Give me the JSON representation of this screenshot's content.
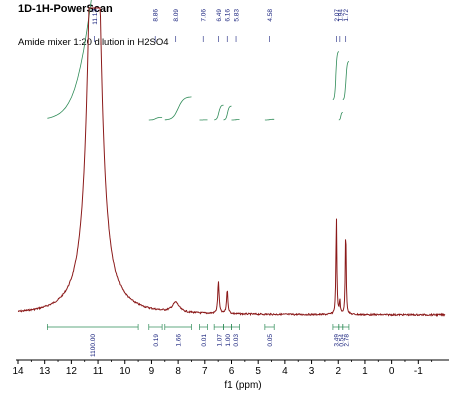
{
  "chart_data": {
    "type": "line",
    "title": "1D-1H-PowerScan",
    "subtitle": "Amide mixer 1:20 dilution in H2SO4",
    "xlabel": "f1 (ppm)",
    "xlim": [
      14,
      -2
    ],
    "x_ticks": [
      "14",
      "13",
      "12",
      "11",
      "10",
      "9",
      "8",
      "7",
      "6",
      "5",
      "4",
      "3",
      "2",
      "1",
      "0",
      "-1"
    ],
    "peak_labels": [
      {
        "ppm": 11.13,
        "label": "11.13"
      },
      {
        "ppm": 8.86,
        "label": "8.86"
      },
      {
        "ppm": 8.09,
        "label": "8.09"
      },
      {
        "ppm": 7.06,
        "label": "7.06"
      },
      {
        "ppm": 6.49,
        "label": "6.49"
      },
      {
        "ppm": 6.16,
        "label": "6.16"
      },
      {
        "ppm": 5.83,
        "label": "5.83"
      },
      {
        "ppm": 4.58,
        "label": "4.58"
      },
      {
        "ppm": 2.07,
        "label": "2.07"
      },
      {
        "ppm": 1.94,
        "label": "1.94"
      },
      {
        "ppm": 1.72,
        "label": "1.72"
      }
    ],
    "integrals": [
      {
        "from": 12.9,
        "to": 9.5,
        "value": "1100.00"
      },
      {
        "from": 9.1,
        "to": 8.6,
        "value": "0.19"
      },
      {
        "from": 8.5,
        "to": 7.5,
        "value": "1.66"
      },
      {
        "from": 7.2,
        "to": 6.9,
        "value": "0.01"
      },
      {
        "from": 6.65,
        "to": 6.3,
        "value": "1.07"
      },
      {
        "from": 6.3,
        "to": 6.0,
        "value": "1.00"
      },
      {
        "from": 6.0,
        "to": 5.7,
        "value": "0.03"
      },
      {
        "from": 4.75,
        "to": 4.4,
        "value": "0.05"
      },
      {
        "from": 2.2,
        "to": 1.98,
        "value": "3.49"
      },
      {
        "from": 1.98,
        "to": 1.83,
        "value": "0.54"
      },
      {
        "from": 1.83,
        "to": 1.6,
        "value": "2.78"
      }
    ],
    "peaks": [
      {
        "ppm": 11.13,
        "height": 1.0,
        "width": 0.45,
        "note": "truncated, off-scale"
      },
      {
        "ppm": 8.09,
        "height": 0.07,
        "width": 0.3
      },
      {
        "ppm": 6.49,
        "height": 0.23,
        "width": 0.06
      },
      {
        "ppm": 6.16,
        "height": 0.17,
        "width": 0.06
      },
      {
        "ppm": 2.07,
        "height": 0.71,
        "width": 0.04
      },
      {
        "ppm": 1.94,
        "height": 0.1,
        "width": 0.04
      },
      {
        "ppm": 1.72,
        "height": 0.63,
        "width": 0.04
      }
    ],
    "colors": {
      "spectrum": "#8b1a1a",
      "integral": "#2e8b57",
      "label": "#1a237e",
      "axis": "#000000"
    }
  }
}
